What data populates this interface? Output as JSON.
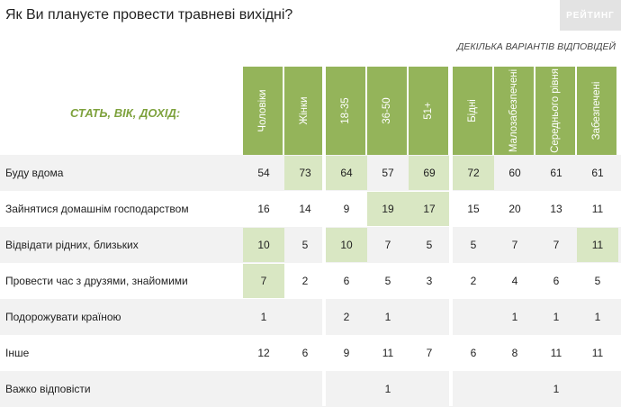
{
  "title": "Як Ви плануєте провести травневі вихідні?",
  "logo": "РЕЙТИНГ",
  "subtitle": "ДЕКІЛЬКА ВАРІАНТІВ ВІДПОВІДЕЙ",
  "group_label": "СТАТЬ, ВІК, ДОХІД:",
  "chart_data": {
    "type": "table",
    "columns": [
      "Чоловіки",
      "Жінки",
      "18-35",
      "36-50",
      "51+",
      "Бідні",
      "Малозабезпечені",
      "Середнього рівня",
      "Забезпечені"
    ],
    "rows": [
      {
        "label": "Буду вдома",
        "values": [
          "54",
          "73",
          "64",
          "57",
          "69",
          "72",
          "60",
          "61",
          "61"
        ],
        "highlight": [
          false,
          true,
          true,
          false,
          true,
          true,
          false,
          false,
          false
        ]
      },
      {
        "label": "Зайнятися домашнім господарством",
        "values": [
          "16",
          "14",
          "9",
          "19",
          "17",
          "15",
          "20",
          "13",
          "11"
        ],
        "highlight": [
          false,
          false,
          false,
          true,
          true,
          false,
          false,
          false,
          false
        ]
      },
      {
        "label": "Відвідати рідних, близьких",
        "values": [
          "10",
          "5",
          "10",
          "7",
          "5",
          "5",
          "7",
          "7",
          "11"
        ],
        "highlight": [
          true,
          false,
          true,
          false,
          false,
          false,
          false,
          false,
          true
        ]
      },
      {
        "label": "Провести час з друзями, знайомими",
        "values": [
          "7",
          "2",
          "6",
          "5",
          "3",
          "2",
          "4",
          "6",
          "5"
        ],
        "highlight": [
          true,
          false,
          false,
          false,
          false,
          false,
          false,
          false,
          false
        ]
      },
      {
        "label": "Подорожувати країною",
        "values": [
          "1",
          "",
          "2",
          "1",
          "",
          "",
          "1",
          "1",
          "1"
        ],
        "highlight": [
          false,
          false,
          false,
          false,
          false,
          false,
          false,
          false,
          false
        ]
      },
      {
        "label": "Інше",
        "values": [
          "12",
          "6",
          "9",
          "11",
          "7",
          "6",
          "8",
          "11",
          "11"
        ],
        "highlight": [
          false,
          false,
          false,
          false,
          false,
          false,
          false,
          false,
          false
        ]
      },
      {
        "label": "Важко відповісти",
        "values": [
          "",
          "",
          "",
          "1",
          "",
          "",
          "",
          "1",
          ""
        ],
        "highlight": [
          false,
          false,
          false,
          false,
          false,
          false,
          false,
          false,
          false
        ]
      }
    ]
  }
}
